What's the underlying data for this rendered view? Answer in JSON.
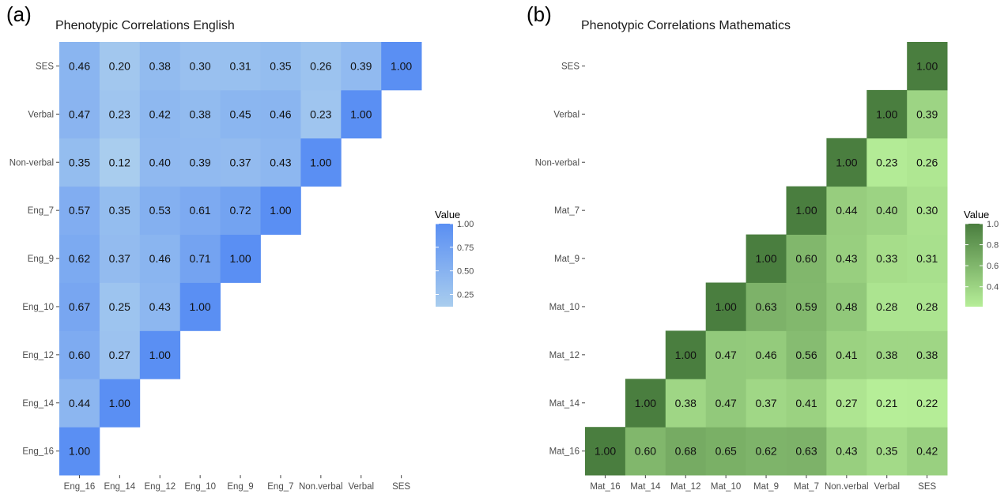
{
  "chart_data": [
    {
      "type": "heatmap",
      "panel_label": "(a)",
      "title": "Phenotypic Correlations English",
      "x_categories": [
        "Eng_16",
        "Eng_14",
        "Eng_12",
        "Eng_10",
        "Eng_9",
        "Eng_7",
        "Non.verbal",
        "Verbal",
        "SES"
      ],
      "y_categories": [
        "Eng_16",
        "Eng_14",
        "Eng_12",
        "Eng_10",
        "Eng_9",
        "Eng_7",
        "Non-verbal",
        "Verbal",
        "SES"
      ],
      "values": [
        [
          1.0,
          null,
          null,
          null,
          null,
          null,
          null,
          null,
          null
        ],
        [
          0.44,
          1.0,
          null,
          null,
          null,
          null,
          null,
          null,
          null
        ],
        [
          0.6,
          0.27,
          1.0,
          null,
          null,
          null,
          null,
          null,
          null
        ],
        [
          0.67,
          0.25,
          0.43,
          1.0,
          null,
          null,
          null,
          null,
          null
        ],
        [
          0.62,
          0.37,
          0.46,
          0.71,
          1.0,
          null,
          null,
          null,
          null
        ],
        [
          0.57,
          0.35,
          0.53,
          0.61,
          0.72,
          1.0,
          null,
          null,
          null
        ],
        [
          0.35,
          0.12,
          0.4,
          0.39,
          0.37,
          0.43,
          1.0,
          null,
          null
        ],
        [
          0.47,
          0.23,
          0.42,
          0.38,
          0.45,
          0.46,
          0.23,
          1.0,
          null
        ],
        [
          0.46,
          0.2,
          0.38,
          0.3,
          0.31,
          0.35,
          0.26,
          0.39,
          1.0
        ]
      ],
      "legend": {
        "title": "Value",
        "ticks": [
          "1.00",
          "0.75",
          "0.50",
          "0.25"
        ],
        "tick_values": [
          1.0,
          0.75,
          0.5,
          0.25
        ],
        "range": [
          0.12,
          1.0
        ],
        "low_color": "#a9cdee",
        "high_color": "#5a8ff3"
      }
    },
    {
      "type": "heatmap",
      "panel_label": "(b)",
      "title": "Phenotypic Correlations Mathematics",
      "x_categories": [
        "Mat_16",
        "Mat_14",
        "Mat_12",
        "Mat_10",
        "Mat_9",
        "Mat_7",
        "Non.verbal",
        "Verbal",
        "SES"
      ],
      "y_categories": [
        "Mat_16",
        "Mat_14",
        "Mat_12",
        "Mat_10",
        "Mat_9",
        "Mat_7",
        "Non-verbal",
        "Verbal",
        "SES"
      ],
      "values": [
        [
          1.0,
          0.6,
          0.68,
          0.65,
          0.62,
          0.63,
          0.43,
          0.35,
          0.42
        ],
        [
          null,
          1.0,
          0.38,
          0.47,
          0.37,
          0.41,
          0.27,
          0.21,
          0.22
        ],
        [
          null,
          null,
          1.0,
          0.47,
          0.46,
          0.56,
          0.41,
          0.38,
          0.38
        ],
        [
          null,
          null,
          null,
          1.0,
          0.63,
          0.59,
          0.48,
          0.28,
          0.28
        ],
        [
          null,
          null,
          null,
          null,
          1.0,
          0.6,
          0.43,
          0.33,
          0.31
        ],
        [
          null,
          null,
          null,
          null,
          null,
          1.0,
          0.44,
          0.4,
          0.3
        ],
        [
          null,
          null,
          null,
          null,
          null,
          null,
          1.0,
          0.23,
          0.26
        ],
        [
          null,
          null,
          null,
          null,
          null,
          null,
          null,
          1.0,
          0.39
        ],
        [
          null,
          null,
          null,
          null,
          null,
          null,
          null,
          null,
          1.0
        ]
      ],
      "legend": {
        "title": "Value",
        "ticks": [
          "1.0",
          "0.8",
          "0.6",
          "0.4"
        ],
        "tick_values": [
          1.0,
          0.8,
          0.6,
          0.4
        ],
        "range": [
          0.21,
          1.0
        ],
        "low_color": "#b6ee98",
        "high_color": "#4a7e3f"
      }
    }
  ]
}
